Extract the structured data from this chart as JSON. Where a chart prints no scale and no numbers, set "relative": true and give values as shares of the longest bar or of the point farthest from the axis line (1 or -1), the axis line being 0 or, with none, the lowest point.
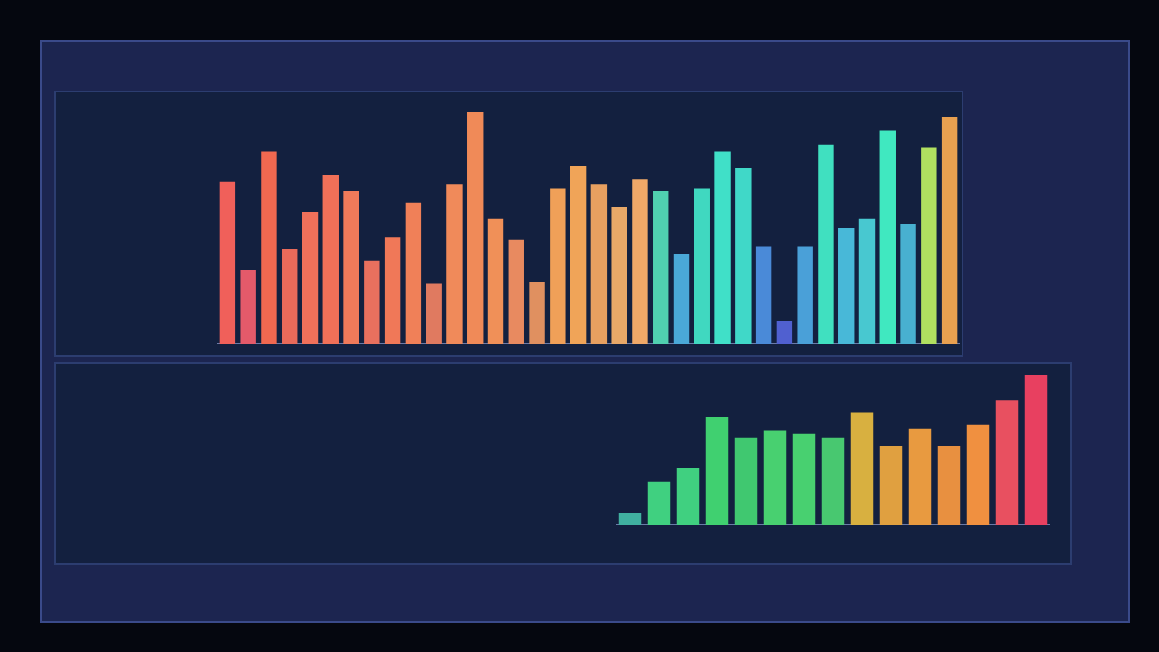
{
  "chart_data": [
    {
      "type": "bar",
      "relative": true,
      "categories": [
        null,
        null,
        null,
        null,
        null,
        null,
        null,
        null,
        null,
        null,
        null,
        null,
        null,
        null,
        null,
        null,
        null,
        null,
        null,
        null,
        null,
        null,
        null,
        null,
        null,
        null,
        null,
        null,
        null,
        null,
        null,
        null,
        null,
        null,
        null,
        null
      ],
      "values": [
        0.7,
        0.32,
        0.83,
        0.41,
        0.57,
        0.73,
        0.66,
        0.36,
        0.46,
        0.61,
        0.26,
        0.69,
        1,
        0.54,
        0.45,
        0.27,
        0.67,
        0.77,
        0.69,
        0.59,
        0.71,
        0.66,
        0.39,
        0.67,
        0.83,
        0.76,
        0.42,
        0.1,
        0.42,
        0.86,
        0.5,
        0.54,
        0.92,
        0.52,
        0.85,
        0.98
      ],
      "colors": [
        "#f0605a",
        "#e45a6a",
        "#f06850",
        "#e86a5a",
        "#f0705a",
        "#f07058",
        "#f07a5a",
        "#e8705e",
        "#f07858",
        "#f08058",
        "#e07a60",
        "#f08a5a",
        "#f08a58",
        "#f09058",
        "#e88a60",
        "#e09060",
        "#f0a058",
        "#f0a458",
        "#e8a060",
        "#e8a868",
        "#f0a868",
        "#50d0b0",
        "#4aa8d8",
        "#40d8c0",
        "#40e0c8",
        "#40d8c8",
        "#4a8ad8",
        "#5060d0",
        "#4aa0d8",
        "#40e0c0",
        "#48b8d8",
        "#48c8d0",
        "#40e8c0",
        "#48b0d0",
        "#b0e060",
        "#e8a050"
      ]
    },
    {
      "type": "bar",
      "relative": true,
      "categories": [
        null,
        null,
        null,
        null,
        null,
        null,
        null,
        null,
        null,
        null,
        null,
        null,
        null,
        null,
        null
      ],
      "values": [
        0.08,
        0.29,
        0.38,
        0.72,
        0.58,
        0.63,
        0.61,
        0.58,
        0.75,
        0.53,
        0.64,
        0.53,
        0.67,
        0.83,
        1
      ],
      "colors": [
        "#40b0a0",
        "#40d080",
        "#40d080",
        "#40d070",
        "#40c870",
        "#48d070",
        "#48d070",
        "#48c870",
        "#d8b040",
        "#e0a040",
        "#e89a40",
        "#e89040",
        "#f09040",
        "#e85060",
        "#e84060"
      ]
    }
  ]
}
